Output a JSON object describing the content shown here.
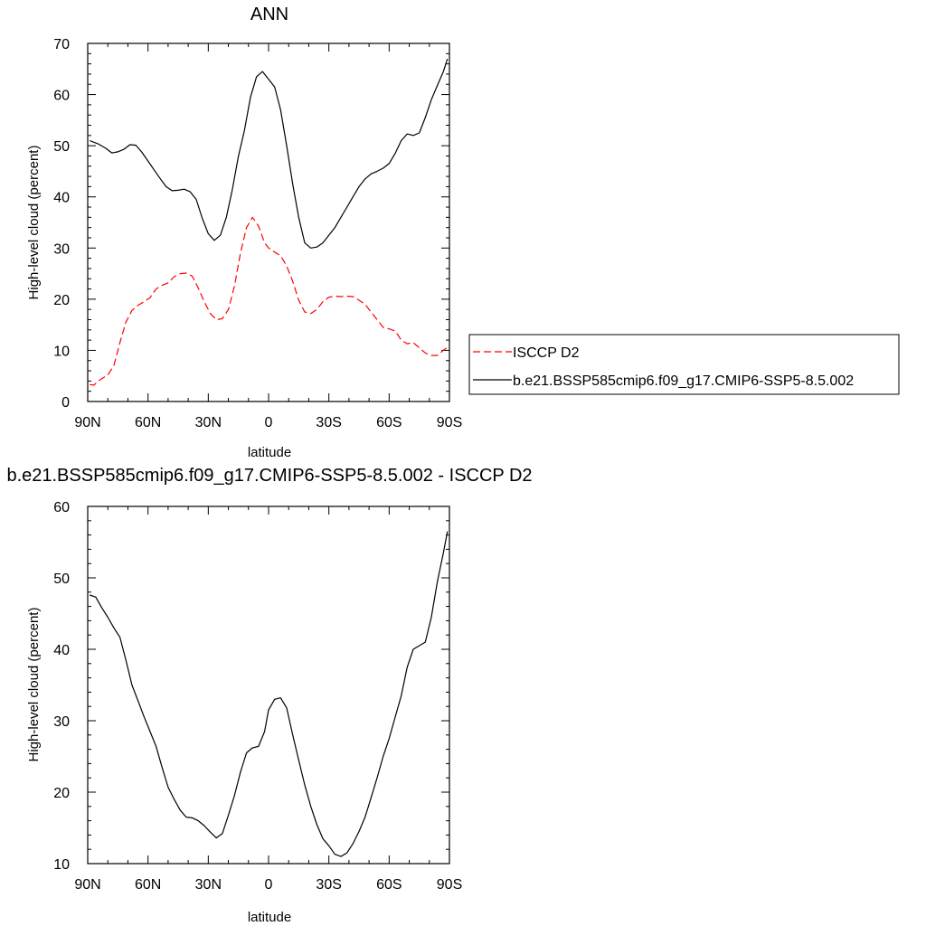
{
  "figure": {
    "top_title": "ANN",
    "bottom_title": "b.e21.BSSP585cmip6.f09_g17.CMIP6-SSP5-8.5.002 - ISCCP D2"
  },
  "legend": {
    "items": [
      {
        "label": "ISCCP D2",
        "color": "#ff0000",
        "dash": "dashed"
      },
      {
        "label": "b.e21.BSSP585cmip6.f09_g17.CMIP6-SSP5-8.5.002",
        "color": "#000000",
        "dash": "solid"
      }
    ]
  },
  "chart_data": [
    {
      "type": "line",
      "title": "ANN",
      "xlabel": "latitude",
      "ylabel": "High-level cloud (percent)",
      "xlim": [
        90,
        -90
      ],
      "ylim": [
        0,
        70
      ],
      "x_ticks": [
        90,
        60,
        30,
        0,
        -30,
        -60,
        -90
      ],
      "x_tick_labels": [
        "90N",
        "60N",
        "30N",
        "0",
        "30S",
        "60S",
        "90S"
      ],
      "y_ticks": [
        0,
        10,
        20,
        30,
        40,
        50,
        60,
        70
      ],
      "y_tick_labels": [
        "0",
        "10",
        "20",
        "30",
        "40",
        "50",
        "60",
        "70"
      ],
      "grid": false,
      "legend": "right",
      "series": [
        {
          "name": "ISCCP D2",
          "color": "#ff0000",
          "dash": "dashed",
          "x": [
            89,
            87,
            84,
            80,
            77,
            74,
            71,
            68,
            65,
            62,
            59,
            56,
            53,
            50,
            47,
            44,
            41,
            38,
            35,
            32,
            29,
            26,
            23,
            20,
            17,
            14,
            11,
            8,
            5,
            2,
            0,
            -3,
            -6,
            -9,
            -12,
            -15,
            -18,
            -21,
            -24,
            -27,
            -30,
            -33,
            -36,
            -39,
            -42,
            -45,
            -48,
            -51,
            -54,
            -57,
            -60,
            -63,
            -66,
            -69,
            -72,
            -75,
            -78,
            -81,
            -84,
            -87,
            -89
          ],
          "values": [
            3.3,
            3.2,
            4.2,
            5.2,
            7.0,
            11.5,
            15.5,
            17.8,
            18.8,
            19.5,
            20.3,
            22.0,
            22.7,
            23.2,
            24.4,
            25.0,
            25.1,
            24.5,
            22.2,
            19.5,
            17.2,
            16.0,
            16.2,
            18.0,
            22.5,
            29.0,
            34.0,
            36.0,
            34.3,
            31.0,
            30.0,
            29.2,
            28.5,
            26.5,
            23.5,
            19.8,
            17.5,
            17.2,
            18.0,
            19.5,
            20.4,
            20.6,
            20.5,
            20.6,
            20.5,
            19.8,
            19.0,
            17.5,
            16.0,
            14.5,
            14.2,
            13.8,
            12.0,
            11.3,
            11.5,
            10.5,
            9.5,
            9.0,
            9.0,
            10.0,
            10.6
          ]
        },
        {
          "name": "b.e21.BSSP585cmip6.f09_g17.CMIP6-SSP5-8.5.002",
          "color": "#000000",
          "dash": "solid",
          "x": [
            89,
            85,
            81,
            78,
            75,
            72,
            69,
            66,
            63,
            60,
            57,
            54,
            51,
            48,
            45,
            42,
            39,
            36,
            33,
            30,
            27,
            24,
            21,
            18,
            15,
            12,
            9,
            6,
            3,
            0,
            -3,
            -6,
            -9,
            -12,
            -15,
            -18,
            -21,
            -24,
            -27,
            -30,
            -33,
            -36,
            -39,
            -42,
            -45,
            -48,
            -51,
            -54,
            -57,
            -60,
            -63,
            -66,
            -69,
            -72,
            -75,
            -78,
            -81,
            -84,
            -87,
            -89
          ],
          "values": [
            51.0,
            50.4,
            49.5,
            48.6,
            48.8,
            49.3,
            50.2,
            50.1,
            48.7,
            47.0,
            45.3,
            43.6,
            42.0,
            41.2,
            41.3,
            41.5,
            41.0,
            39.5,
            35.8,
            32.8,
            31.5,
            32.5,
            36.0,
            41.5,
            48.0,
            53.0,
            59.5,
            63.5,
            64.5,
            63.0,
            61.5,
            57.0,
            50.0,
            42.5,
            36.0,
            31.0,
            30.0,
            30.2,
            31.0,
            32.5,
            34.0,
            36.0,
            38.0,
            40.0,
            42.0,
            43.5,
            44.5,
            45.0,
            45.6,
            46.5,
            48.5,
            51.0,
            52.3,
            52.0,
            52.5,
            55.5,
            59.0,
            61.8,
            64.5,
            67.0
          ]
        }
      ]
    },
    {
      "type": "line",
      "title": "b.e21.BSSP585cmip6.f09_g17.CMIP6-SSP5-8.5.002 - ISCCP D2",
      "xlabel": "latitude",
      "ylabel": "High-level cloud (percent)",
      "xlim": [
        90,
        -90
      ],
      "ylim": [
        10,
        60
      ],
      "x_ticks": [
        90,
        60,
        30,
        0,
        -30,
        -60,
        -90
      ],
      "x_tick_labels": [
        "90N",
        "60N",
        "30N",
        "0",
        "30S",
        "60S",
        "90S"
      ],
      "y_ticks": [
        10,
        20,
        30,
        40,
        50,
        60
      ],
      "y_tick_labels": [
        "10",
        "20",
        "30",
        "40",
        "50",
        "60"
      ],
      "grid": false,
      "series": [
        {
          "color": "#000000",
          "dash": "solid",
          "x": [
            89,
            86,
            83,
            80,
            77,
            74,
            71,
            68,
            65,
            62,
            59,
            56,
            53,
            50,
            47,
            44,
            41,
            38,
            35,
            32,
            29,
            26,
            23,
            20,
            17,
            14,
            11,
            8,
            5,
            2,
            0,
            -3,
            -6,
            -9,
            -12,
            -15,
            -18,
            -21,
            -24,
            -27,
            -30,
            -33,
            -36,
            -39,
            -42,
            -45,
            -48,
            -51,
            -54,
            -57,
            -60,
            -63,
            -66,
            -69,
            -72,
            -75,
            -78,
            -81,
            -84,
            -87,
            -89
          ],
          "values": [
            47.6,
            47.3,
            45.8,
            44.5,
            43.0,
            41.7,
            38.5,
            35.0,
            32.8,
            30.6,
            28.5,
            26.4,
            23.5,
            20.7,
            19.0,
            17.5,
            16.5,
            16.4,
            16.0,
            15.3,
            14.4,
            13.6,
            14.2,
            16.8,
            19.5,
            22.8,
            25.5,
            26.2,
            26.4,
            28.5,
            31.5,
            33.0,
            33.2,
            31.8,
            28.0,
            24.5,
            21.0,
            18.0,
            15.5,
            13.5,
            12.5,
            11.3,
            11.0,
            11.5,
            12.8,
            14.5,
            16.5,
            19.2,
            22.0,
            25.0,
            27.5,
            30.5,
            33.5,
            37.5,
            40.0,
            40.5,
            41.0,
            44.5,
            49.5,
            53.5,
            56.5
          ]
        }
      ]
    }
  ]
}
